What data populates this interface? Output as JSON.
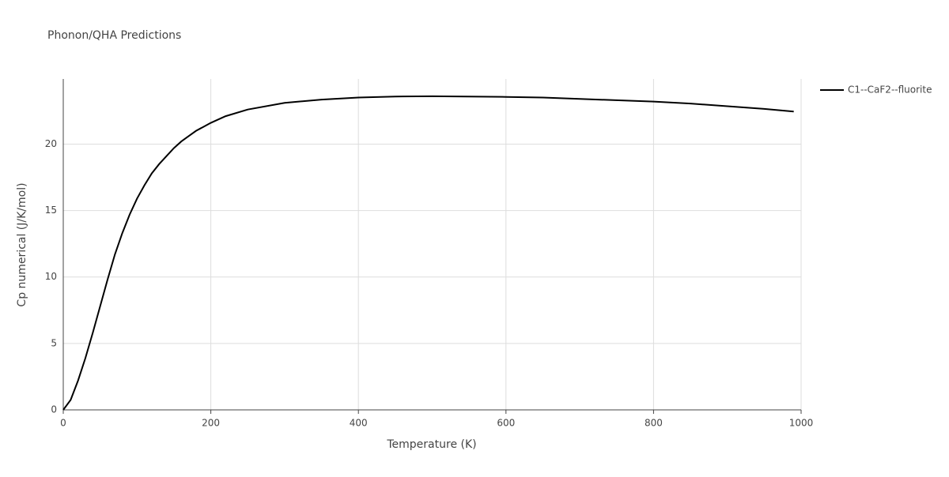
{
  "chart_data": {
    "type": "line",
    "title": "Phonon/QHA Predictions",
    "x_label": "Temperature (K)",
    "y_label": "Cp numerical (J/K/mol)",
    "x": [
      0,
      10,
      20,
      30,
      40,
      50,
      60,
      70,
      80,
      90,
      100,
      110,
      120,
      130,
      140,
      150,
      160,
      170,
      180,
      190,
      200,
      220,
      250,
      300,
      350,
      400,
      450,
      500,
      600,
      650,
      700,
      800,
      850,
      900,
      950,
      990
    ],
    "series": [
      {
        "name": "C1--CaF2--fluorite",
        "color": "#000000",
        "values": [
          0,
          0.75,
          2.2,
          3.9,
          5.8,
          7.8,
          9.8,
          11.7,
          13.3,
          14.7,
          15.9,
          16.9,
          17.8,
          18.5,
          19.1,
          19.7,
          20.2,
          20.6,
          21.0,
          21.3,
          21.6,
          22.1,
          22.6,
          23.1,
          23.35,
          23.5,
          23.58,
          23.6,
          23.55,
          23.5,
          23.4,
          23.2,
          23.05,
          22.85,
          22.65,
          22.45
        ]
      }
    ],
    "xlim": [
      0,
      1000
    ],
    "xticks": [
      0,
      200,
      400,
      600,
      800,
      1000
    ],
    "ylim": [
      0,
      24.9
    ],
    "yticks": [
      0,
      5,
      10,
      15,
      20
    ],
    "grid": true,
    "legend": "right"
  }
}
